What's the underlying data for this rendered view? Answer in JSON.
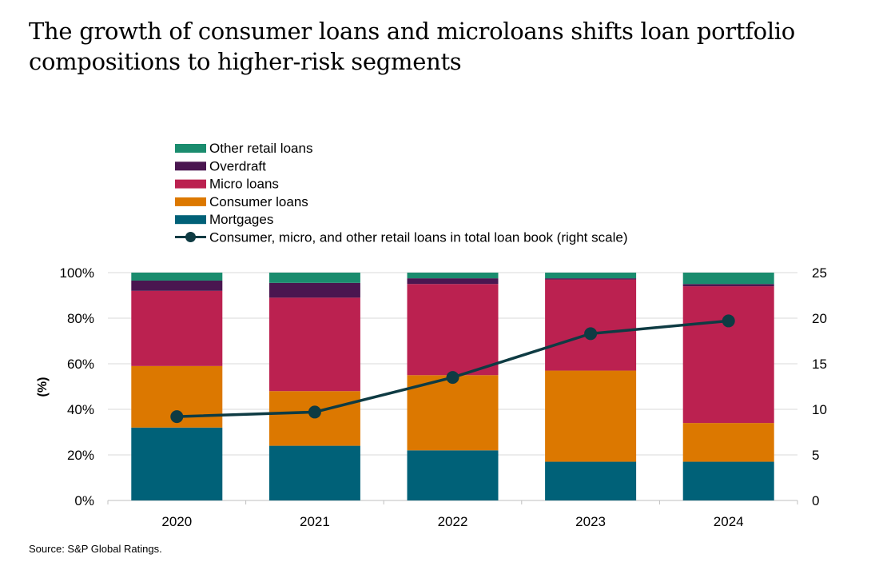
{
  "title": "The growth of consumer loans and microloans shifts loan portfolio compositions to higher-risk segments",
  "source": "Source: S&P Global Ratings.",
  "colors": {
    "Mortgages": "#006178",
    "Consumer loans": "#DC7800",
    "Micro loans": "#BB2150",
    "Overdraft": "#4A1650",
    "Other retail loans": "#1A8C6E",
    "line": "#0E3B43",
    "grid": "#D9D9D9"
  },
  "chart_data": {
    "type": "bar",
    "stacked": true,
    "categories": [
      "2020",
      "2021",
      "2022",
      "2023",
      "2024"
    ],
    "ylabel": "(%)",
    "ylim": [
      0,
      100
    ],
    "yticks": [
      "0%",
      "20%",
      "40%",
      "60%",
      "80%",
      "100%"
    ],
    "y2lim": [
      0,
      25
    ],
    "y2ticks": [
      "0",
      "5",
      "10",
      "15",
      "20",
      "25"
    ],
    "grid": true,
    "legend": "top-left",
    "series": [
      {
        "name": "Mortgages",
        "values": [
          32,
          24,
          22,
          17,
          17
        ]
      },
      {
        "name": "Consumer loans",
        "values": [
          27,
          24,
          33,
          40,
          17
        ]
      },
      {
        "name": "Micro loans",
        "values": [
          33,
          41,
          40,
          40,
          60
        ]
      },
      {
        "name": "Overdraft",
        "values": [
          4.5,
          6.5,
          2.5,
          0.5,
          1
        ]
      },
      {
        "name": "Other retail loans",
        "values": [
          3.5,
          4.5,
          2.5,
          2.5,
          5
        ]
      }
    ],
    "line_series": {
      "name": "Consumer, micro, and other retail loans in total loan book (right scale)",
      "axis": "right",
      "values": [
        9.2,
        9.7,
        13.5,
        18.3,
        19.7
      ]
    },
    "legend_order": [
      "Other retail loans",
      "Overdraft",
      "Micro loans",
      "Consumer loans",
      "Mortgages"
    ]
  }
}
